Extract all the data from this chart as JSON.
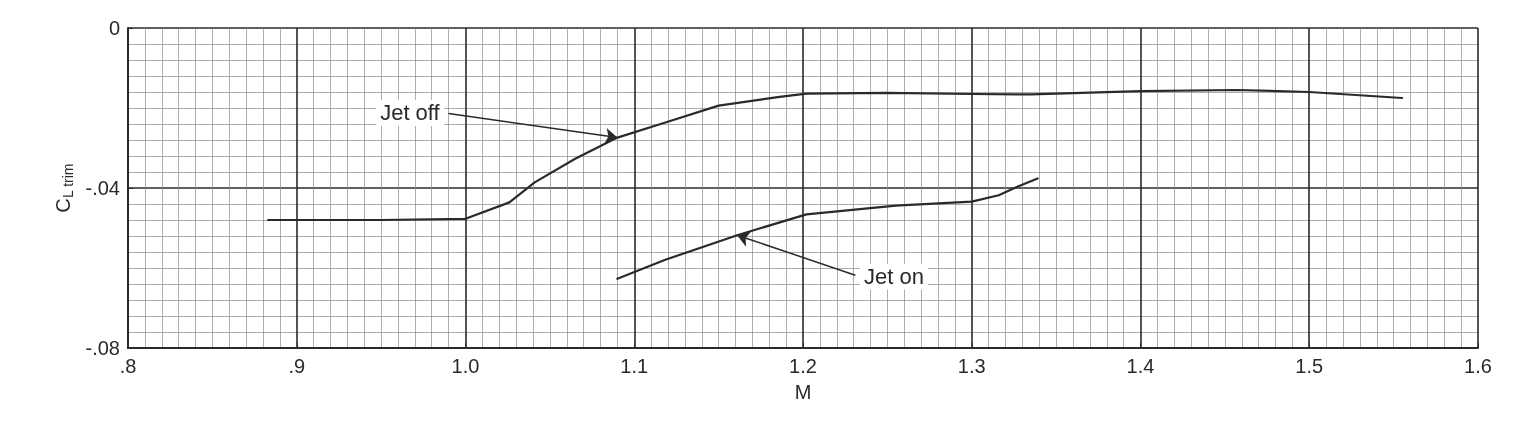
{
  "chart_data": {
    "type": "line",
    "xlabel": "M",
    "ylabel": "C$_{L trim}$",
    "xlim": [
      0.8,
      1.6
    ],
    "ylim": [
      -0.08,
      0
    ],
    "xticks": [
      {
        "value": 0.8,
        "label": ".8"
      },
      {
        "value": 0.9,
        "label": ".9"
      },
      {
        "value": 1,
        "label": "1.0"
      },
      1.1,
      1.2,
      1.3,
      1.4,
      1.5,
      1.6
    ],
    "yticks": [
      {
        "value": -0.08,
        "label": "-.08"
      },
      {
        "value": -0.04,
        "label": "-.04"
      },
      0
    ],
    "grid": true,
    "marker": "none",
    "line_style": "solid",
    "series": [
      {
        "color": "#2a2a2a",
        "x": [
          0.883,
          0.95,
          1.0,
          1.026,
          1.041,
          1.065,
          1.09,
          1.118,
          1.15,
          1.185,
          1.202,
          1.25,
          1.3,
          1.335,
          1.4,
          1.457,
          1.5,
          1.555
        ],
        "values": [
          -0.048,
          -0.048,
          -0.0477,
          -0.0436,
          -0.0386,
          -0.0327,
          -0.0274,
          -0.0237,
          -0.0194,
          -0.0173,
          -0.0164,
          -0.0162,
          -0.0165,
          -0.0166,
          -0.0158,
          -0.0155,
          -0.016,
          -0.0175
        ]
      },
      {
        "color": "#2a2a2a",
        "x": [
          1.09,
          1.118,
          1.161,
          1.202,
          1.255,
          1.3,
          1.316,
          1.327,
          1.339
        ],
        "values": [
          -0.0627,
          -0.058,
          -0.0518,
          -0.0466,
          -0.0444,
          -0.0434,
          -0.0418,
          -0.0397,
          -0.0376
        ]
      }
    ],
    "annotations": [
      {
        "text": "Jet off",
        "x": 1.09,
        "y": -0.0274
      },
      {
        "text": "Jet on",
        "x": 1.161,
        "y": -0.0518
      }
    ]
  }
}
